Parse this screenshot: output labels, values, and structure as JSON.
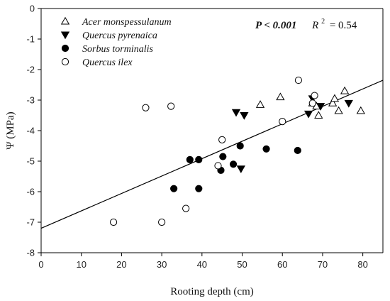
{
  "chart_data": {
    "type": "scatter",
    "xlabel": "Rooting depth (cm)",
    "ylabel": "Ψ (MPa)",
    "xlim": [
      0,
      85
    ],
    "ylim": [
      -8,
      0
    ],
    "xticks": [
      0,
      10,
      20,
      30,
      40,
      50,
      60,
      70,
      80
    ],
    "yticks": [
      0,
      -1,
      -2,
      -3,
      -4,
      -5,
      -6,
      -7,
      -8
    ],
    "xtick_labels": [
      "0",
      "10",
      "20",
      "30",
      "40",
      "50",
      "60",
      "70",
      "80"
    ],
    "ytick_labels": [
      "0",
      "-1",
      "-2",
      "-3",
      "-4",
      "-5",
      "-6",
      "-7",
      "-8"
    ],
    "grid": false,
    "legend_position": "top-left",
    "annotation": {
      "p_value": "P < 0.001",
      "r2_label": "R",
      "r2_exponent": "2",
      "r2_value": "= 0.54"
    },
    "regression_line": {
      "x": [
        0,
        85
      ],
      "y": [
        -7.2,
        -2.35
      ]
    },
    "series": [
      {
        "name": "Acer monspessulanum",
        "marker": "triangle-up-open",
        "points": [
          [
            54.5,
            -3.15
          ],
          [
            59.5,
            -2.9
          ],
          [
            67.5,
            -3.1
          ],
          [
            68.5,
            -3.2
          ],
          [
            69,
            -3.5
          ],
          [
            72.5,
            -3.1
          ],
          [
            73,
            -2.95
          ],
          [
            74,
            -3.35
          ],
          [
            75.5,
            -2.7
          ],
          [
            79.5,
            -3.35
          ]
        ]
      },
      {
        "name": "Quercus pyrenaica",
        "marker": "triangle-down-filled",
        "points": [
          [
            48.5,
            -3.4
          ],
          [
            50.5,
            -3.5
          ],
          [
            49.7,
            -5.25
          ],
          [
            66.5,
            -3.45
          ],
          [
            67.5,
            -2.95
          ],
          [
            69.5,
            -3.2
          ],
          [
            76.5,
            -3.1
          ]
        ]
      },
      {
        "name": "Sorbus torminalis",
        "marker": "circle-filled",
        "points": [
          [
            33,
            -5.9
          ],
          [
            37,
            -4.95
          ],
          [
            39.2,
            -4.95
          ],
          [
            39.2,
            -5.9
          ],
          [
            44.7,
            -5.3
          ],
          [
            45.2,
            -4.85
          ],
          [
            47.8,
            -5.1
          ],
          [
            49.5,
            -4.5
          ],
          [
            56,
            -4.6
          ],
          [
            63.8,
            -4.65
          ]
        ]
      },
      {
        "name": "Quercus ilex",
        "marker": "circle-open",
        "points": [
          [
            18,
            -7
          ],
          [
            26,
            -3.25
          ],
          [
            30,
            -7
          ],
          [
            32.3,
            -3.2
          ],
          [
            36,
            -6.55
          ],
          [
            44,
            -5.15
          ],
          [
            45,
            -4.3
          ],
          [
            60,
            -3.7
          ],
          [
            64,
            -2.35
          ],
          [
            67.5,
            -3.1
          ],
          [
            68,
            -2.85
          ]
        ]
      }
    ]
  }
}
